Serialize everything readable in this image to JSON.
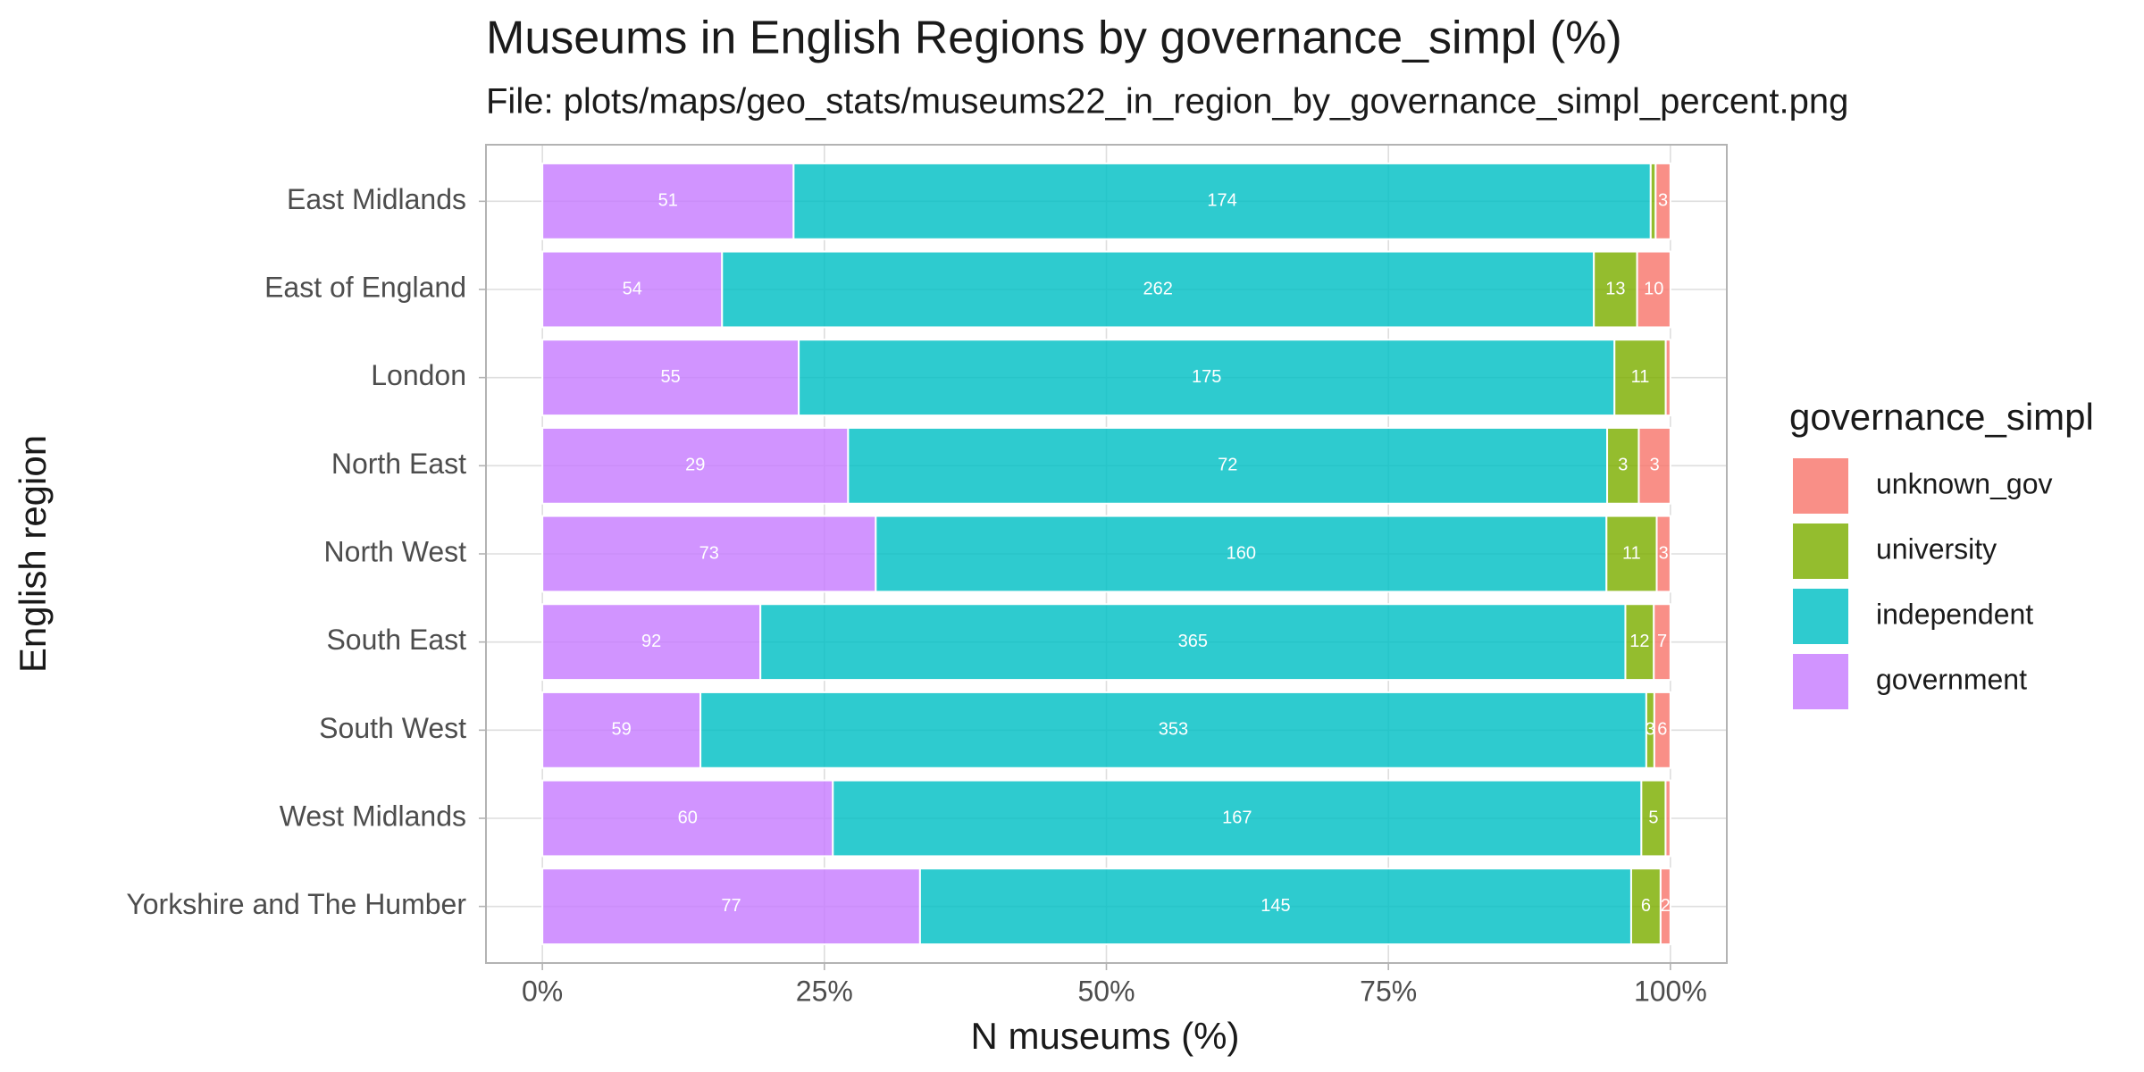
{
  "chart_data": {
    "type": "bar",
    "orientation": "horizontal",
    "stacking": "percent",
    "title": "Museums in English Regions by governance_simpl (%)",
    "subtitle": "File: plots/maps/geo_stats/museums22_in_region_by_governance_simpl_percent.png",
    "x_label": "N museums (%)",
    "y_label": "English region",
    "legend_title": "governance_simpl",
    "categories": [
      "East Midlands",
      "East of England",
      "London",
      "North East",
      "North West",
      "South East",
      "South West",
      "West Midlands",
      "Yorkshire and The Humber"
    ],
    "series": [
      {
        "name": "unknown_gov",
        "color": "#F8766D",
        "values": [
          3,
          10,
          1,
          3,
          3,
          7,
          6,
          1,
          2
        ]
      },
      {
        "name": "university",
        "color": "#7CAE00",
        "values": [
          1,
          13,
          11,
          3,
          11,
          12,
          3,
          5,
          6
        ]
      },
      {
        "name": "independent",
        "color": "#00BFC4",
        "values": [
          174,
          262,
          175,
          72,
          160,
          365,
          353,
          167,
          145
        ]
      },
      {
        "name": "government",
        "color": "#C77CFF",
        "values": [
          51,
          54,
          55,
          29,
          73,
          92,
          59,
          60,
          77
        ]
      }
    ],
    "xlim": [
      -5,
      105
    ],
    "xticks": [
      {
        "value": 0,
        "label": "0%"
      },
      {
        "value": 25,
        "label": "25%"
      },
      {
        "value": 50,
        "label": "50%"
      },
      {
        "value": 75,
        "label": "75%"
      },
      {
        "value": 100,
        "label": "100%"
      }
    ],
    "grid": true,
    "legend_position": "right"
  }
}
